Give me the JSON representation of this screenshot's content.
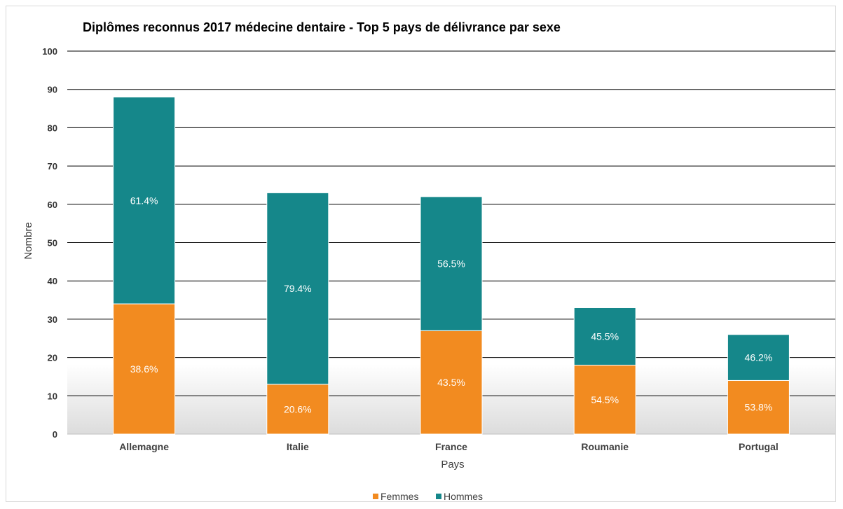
{
  "chart_data": {
    "type": "bar",
    "stacked": true,
    "title": "Diplômes reconnus 2017 médecine dentaire - Top 5 pays de délivrance par sexe",
    "xlabel": "Pays",
    "ylabel": "Nombre",
    "ylim": [
      0,
      100
    ],
    "yticks": [
      0,
      10,
      20,
      30,
      40,
      50,
      60,
      70,
      80,
      90,
      100
    ],
    "grid": true,
    "legend_position": "bottom",
    "categories": [
      "Allemagne",
      "Italie",
      "France",
      "Roumanie",
      "Portugal"
    ],
    "series": [
      {
        "name": "Femmes",
        "color": "#f28b20",
        "values": [
          34,
          13,
          27,
          18,
          14
        ],
        "labels": [
          "38.6%",
          "20.6%",
          "43.5%",
          "54.5%",
          "53.8%"
        ]
      },
      {
        "name": "Hommes",
        "color": "#15878a",
        "values": [
          54,
          50,
          35,
          15,
          12
        ],
        "labels": [
          "61.4%",
          "79.4%",
          "56.5%",
          "45.5%",
          "46.2%"
        ]
      }
    ]
  }
}
